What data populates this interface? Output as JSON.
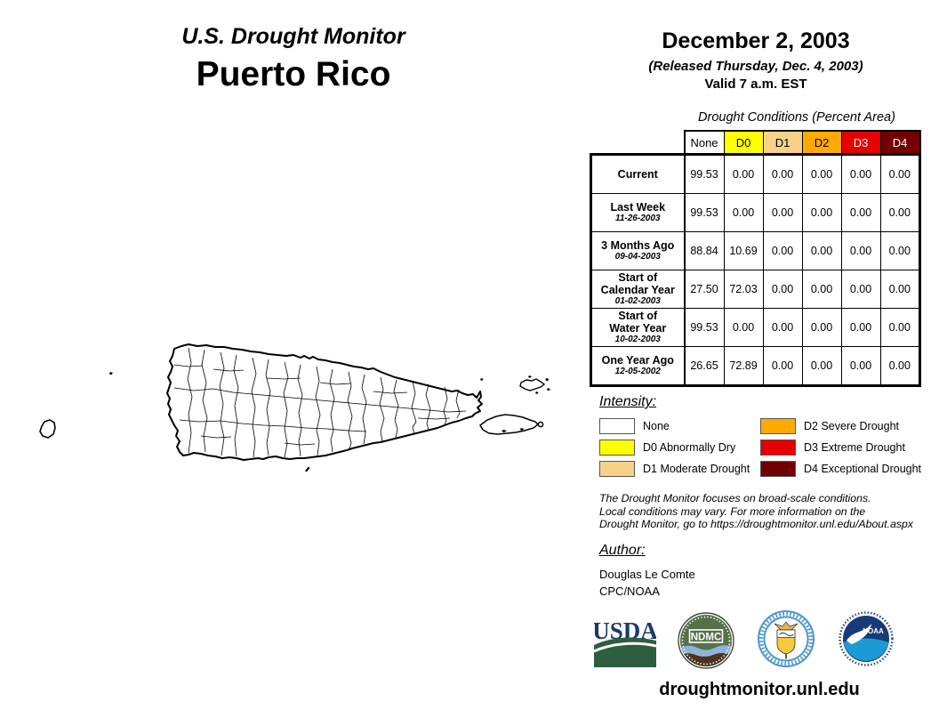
{
  "header": {
    "title": "U.S. Drought Monitor",
    "region": "Puerto Rico",
    "date": "December 2, 2003",
    "released": "(Released Thursday, Dec. 4, 2003)",
    "valid": "Valid 7 a.m. EST"
  },
  "table": {
    "title": "Drought Conditions (Percent Area)",
    "columns": [
      {
        "label": "None",
        "color": "#FFFFFF",
        "text_color": "#000000"
      },
      {
        "label": "D0",
        "color": "#FFFF00",
        "text_color": "#000000"
      },
      {
        "label": "D1",
        "color": "#F8D189",
        "text_color": "#000000"
      },
      {
        "label": "D2",
        "color": "#FFAA00",
        "text_color": "#000000"
      },
      {
        "label": "D3",
        "color": "#E60000",
        "text_color": "#FFFFFF"
      },
      {
        "label": "D4",
        "color": "#730000",
        "text_color": "#FFFFFF"
      }
    ],
    "rows": [
      {
        "label_lines": [
          "Current"
        ],
        "date": null,
        "values": [
          "99.53",
          "0.00",
          "0.00",
          "0.00",
          "0.00",
          "0.00"
        ]
      },
      {
        "label_lines": [
          "Last Week"
        ],
        "date": "11-26-2003",
        "values": [
          "99.53",
          "0.00",
          "0.00",
          "0.00",
          "0.00",
          "0.00"
        ]
      },
      {
        "label_lines": [
          "3 Months Ago"
        ],
        "date": "09-04-2003",
        "values": [
          "88.84",
          "10.69",
          "0.00",
          "0.00",
          "0.00",
          "0.00"
        ]
      },
      {
        "label_lines": [
          "Start of",
          "Calendar Year"
        ],
        "date": "01-02-2003",
        "values": [
          "27.50",
          "72.03",
          "0.00",
          "0.00",
          "0.00",
          "0.00"
        ]
      },
      {
        "label_lines": [
          "Start of",
          "Water Year"
        ],
        "date": "10-02-2003",
        "values": [
          "99.53",
          "0.00",
          "0.00",
          "0.00",
          "0.00",
          "0.00"
        ]
      },
      {
        "label_lines": [
          "One Year Ago"
        ],
        "date": "12-05-2002",
        "values": [
          "26.65",
          "72.89",
          "0.00",
          "0.00",
          "0.00",
          "0.00"
        ]
      }
    ]
  },
  "legend": {
    "title": "Intensity:",
    "items": [
      {
        "label": "None",
        "color": "#FFFFFF"
      },
      {
        "label": "D0 Abnormally Dry",
        "color": "#FFFF00"
      },
      {
        "label": "D1 Moderate Drought",
        "color": "#F8D189"
      },
      {
        "label": "D2 Severe Drought",
        "color": "#FFAA00"
      },
      {
        "label": "D3 Extreme Drought",
        "color": "#E60000"
      },
      {
        "label": "D4 Exceptional Drought",
        "color": "#730000"
      }
    ]
  },
  "disclaimer": {
    "lines": [
      "The Drought Monitor focuses on broad-scale conditions.",
      "Local conditions may vary. For more information on the",
      "Drought Monitor, go to https://droughtmonitor.unl.edu/About.aspx"
    ]
  },
  "author": {
    "title": "Author:",
    "name": "Douglas Le Comte",
    "org": "CPC/NOAA"
  },
  "logos": {
    "usda_text": "USDA",
    "ndmc_text": "NDMC",
    "noaa_text": "NOAA"
  },
  "map": {
    "fill_color": "#FFFFFF",
    "outline_color": "#000000"
  },
  "footer": {
    "url": "droughtmonitor.unl.edu"
  }
}
